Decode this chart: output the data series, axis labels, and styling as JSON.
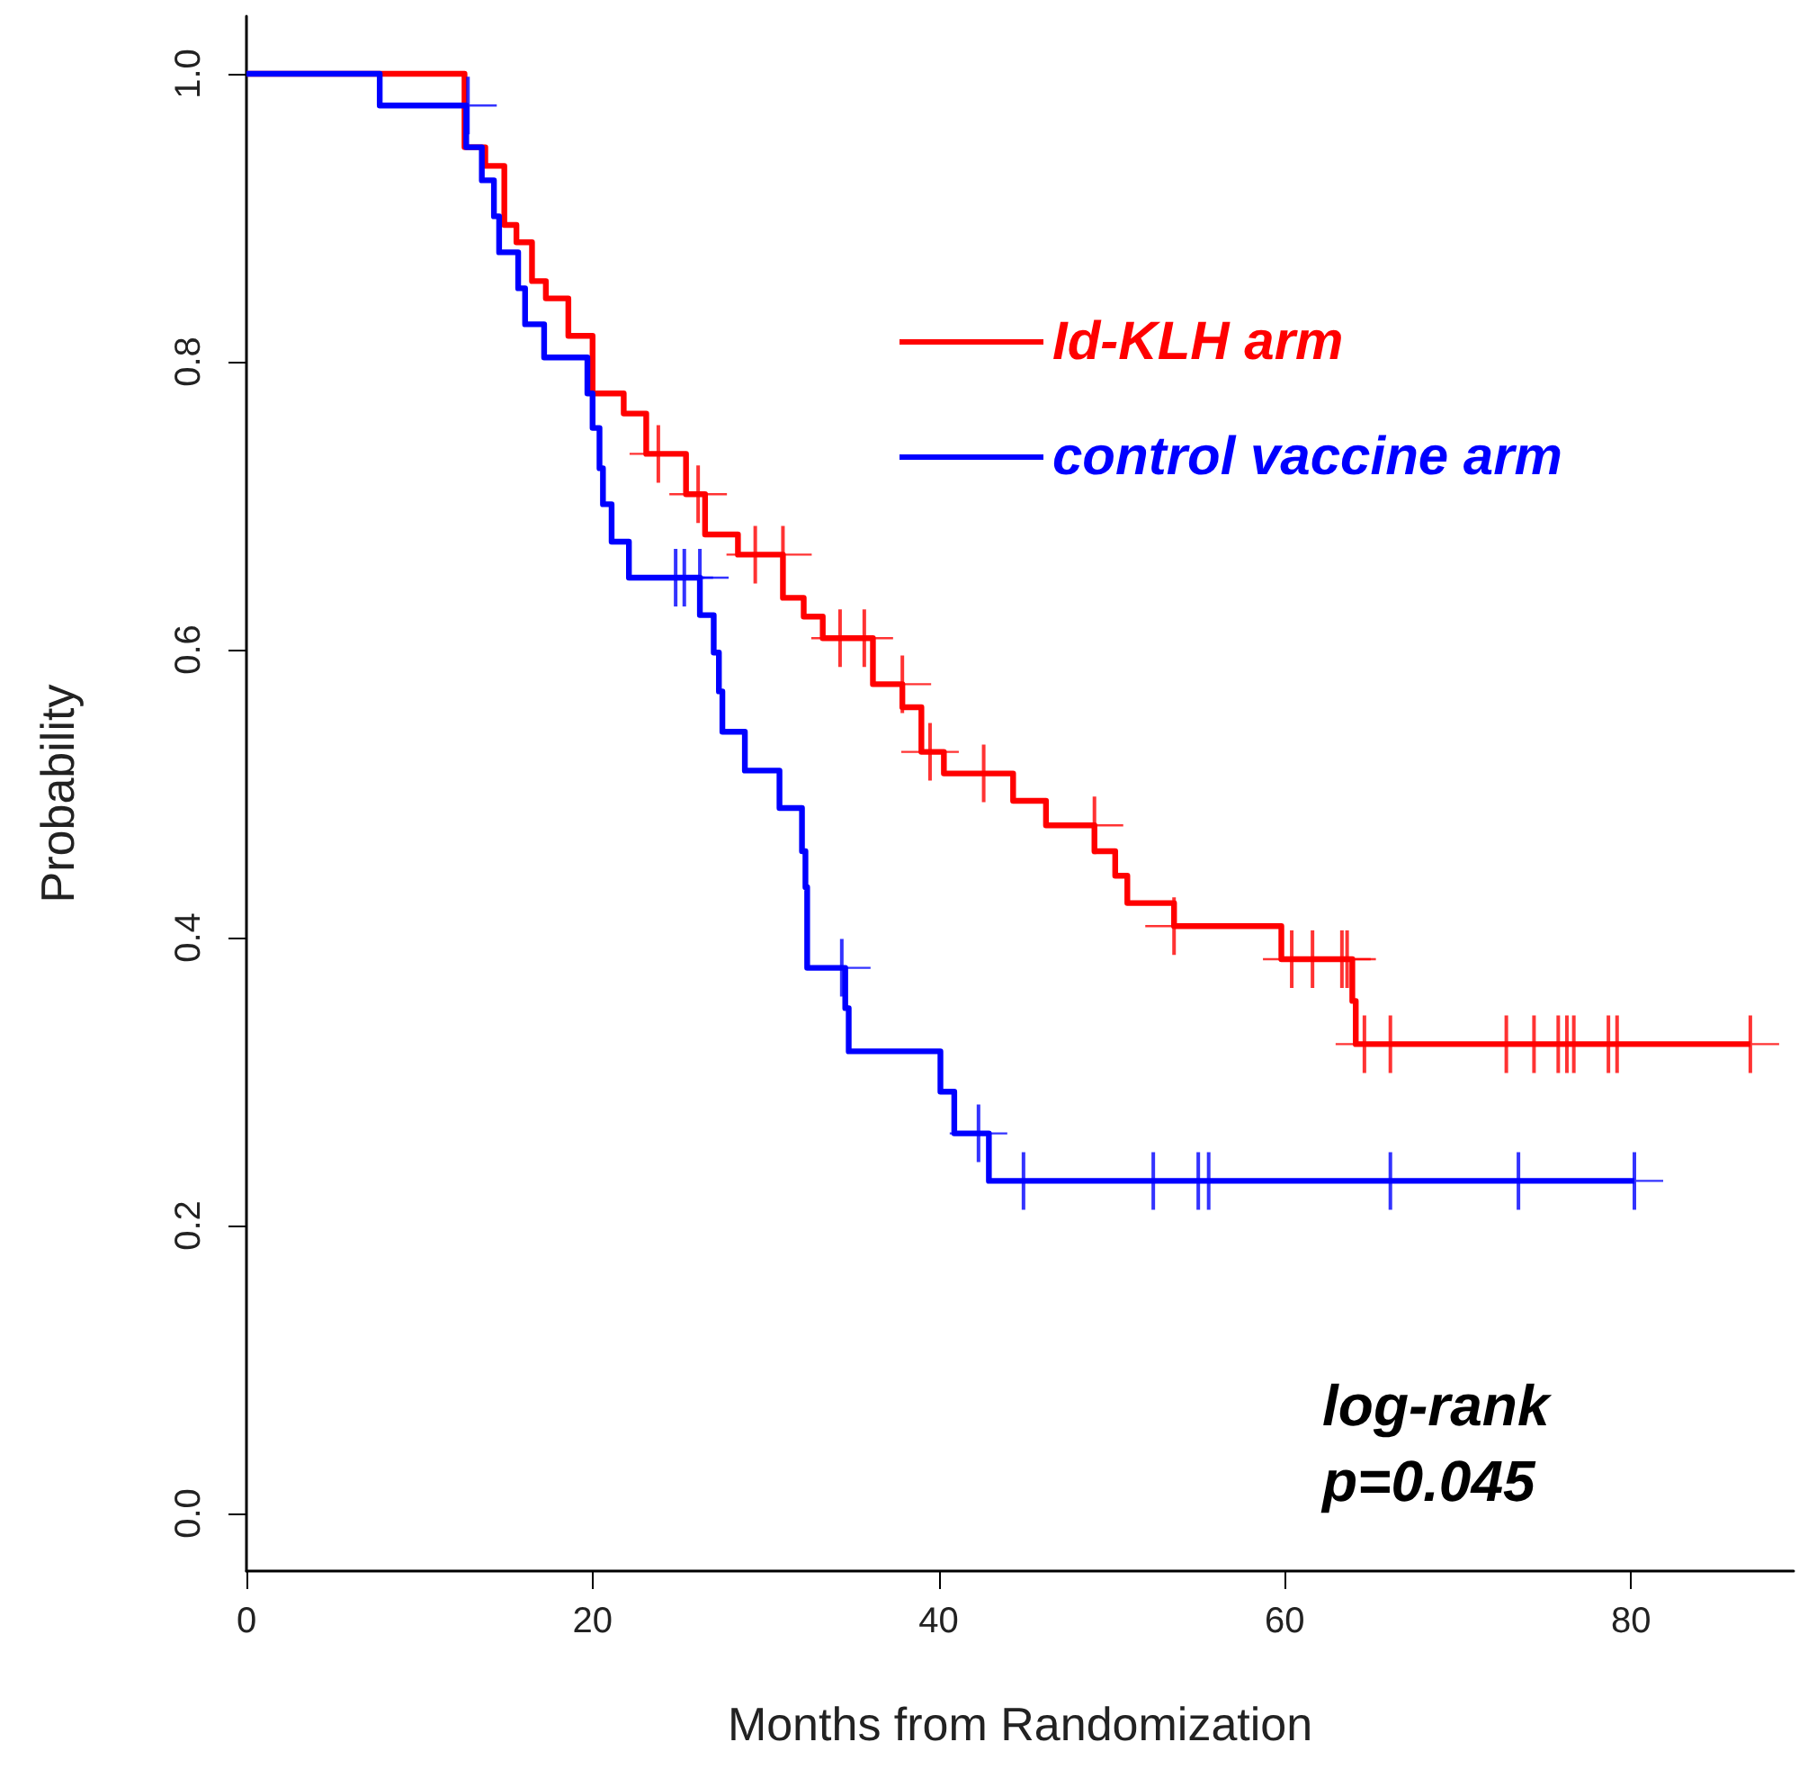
{
  "chart_data": {
    "type": "step",
    "xlabel": "Months from Randomization",
    "ylabel": "Probability",
    "xlim": [
      0,
      89.4
    ],
    "xticks": [
      0,
      20,
      40,
      60,
      80
    ],
    "ylim": [
      -0.04,
      1.04
    ],
    "yticks": [
      {
        "value": 0,
        "label": "0.0"
      },
      {
        "value": 0.2,
        "label": "0.2"
      },
      {
        "value": 0.4,
        "label": "0.4"
      },
      {
        "value": 0.6,
        "label": "0.6"
      },
      {
        "value": 0.8,
        "label": "0.8"
      },
      {
        "value": 1,
        "label": "1.0"
      }
    ],
    "grid": false,
    "legend": "top right",
    "line_style": "solid",
    "annotations": [
      "log-rank",
      "p=0.045"
    ],
    "series": [
      {
        "name": "Id-KLH arm",
        "color": "#ff0000",
        "x": [
          0,
          12.6,
          13.8,
          14.9,
          15.6,
          16.5,
          17.3,
          18.6,
          20.0,
          21.8,
          23.1,
          25.4,
          26.5,
          28.4,
          31.0,
          32.2,
          33.3,
          36.2,
          37.9,
          39.0,
          40.3,
          44.3,
          46.2,
          49.0,
          50.2,
          50.9,
          53.6,
          59.8,
          63.9,
          64.1,
          86.9
        ],
        "values": [
          1.0,
          0.949,
          0.936,
          0.895,
          0.883,
          0.856,
          0.844,
          0.818,
          0.778,
          0.764,
          0.736,
          0.708,
          0.68,
          0.666,
          0.636,
          0.623,
          0.608,
          0.576,
          0.56,
          0.529,
          0.514,
          0.495,
          0.478,
          0.46,
          0.443,
          0.424,
          0.408,
          0.385,
          0.356,
          0.326,
          0.326
        ]
      },
      {
        "type": "scatter",
        "marker": "cross",
        "color": "#ff0000",
        "x": [
          23.8,
          26.1,
          29.4,
          31.0,
          34.3,
          35.7,
          37.9,
          39.5,
          42.6,
          49.0,
          53.6,
          60.4,
          61.6,
          63.3,
          63.6,
          64.6,
          66.1,
          72.8,
          74.4,
          75.8,
          76.3,
          76.7,
          78.7,
          79.2,
          86.9
        ],
        "values": [
          0.736,
          0.708,
          0.666,
          0.666,
          0.608,
          0.608,
          0.576,
          0.529,
          0.514,
          0.478,
          0.408,
          0.385,
          0.385,
          0.385,
          0.385,
          0.326,
          0.326,
          0.326,
          0.326,
          0.326,
          0.326,
          0.326,
          0.326,
          0.326,
          0.326
        ]
      },
      {
        "name": "control vaccine arm",
        "color": "#0000ff",
        "x": [
          0,
          7.7,
          12.7,
          13.6,
          14.3,
          14.6,
          15.7,
          16.1,
          17.2,
          19.7,
          20.0,
          20.4,
          20.6,
          21.1,
          22.1,
          26.2,
          27.0,
          27.3,
          27.5,
          28.8,
          30.8,
          32.1,
          32.3,
          32.4,
          34.6,
          34.8,
          40.1,
          40.9,
          42.9,
          80.2
        ],
        "values": [
          1.0,
          0.978,
          0.949,
          0.926,
          0.901,
          0.876,
          0.851,
          0.826,
          0.803,
          0.778,
          0.754,
          0.726,
          0.701,
          0.675,
          0.65,
          0.624,
          0.598,
          0.571,
          0.543,
          0.516,
          0.49,
          0.46,
          0.435,
          0.379,
          0.351,
          0.321,
          0.293,
          0.264,
          0.231,
          0.231
        ]
      },
      {
        "type": "scatter",
        "marker": "cross",
        "color": "#0000ff",
        "x": [
          12.8,
          24.8,
          25.3,
          26.2,
          34.4,
          42.3,
          44.9,
          52.4,
          55.0,
          55.6,
          66.1,
          73.5,
          80.2
        ],
        "values": [
          0.978,
          0.65,
          0.65,
          0.65,
          0.379,
          0.264,
          0.231,
          0.231,
          0.231,
          0.231,
          0.231,
          0.231,
          0.231
        ]
      }
    ]
  }
}
